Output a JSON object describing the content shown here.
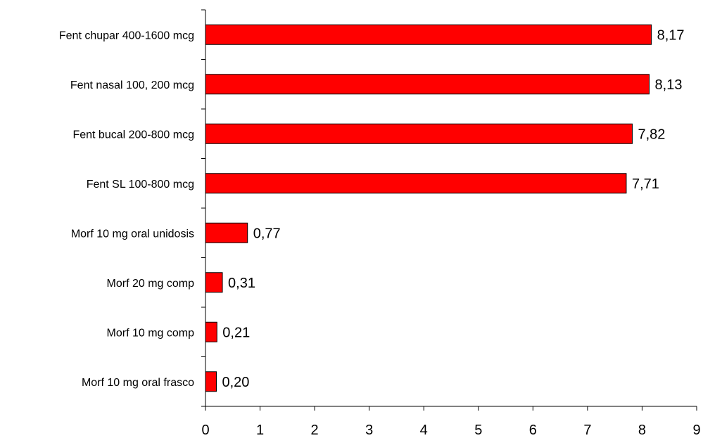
{
  "chart_data": {
    "type": "bar",
    "orientation": "horizontal",
    "categories": [
      "Fent chupar 400-1600 mcg",
      "Fent nasal 100, 200 mcg",
      "Fent bucal 200-800 mcg",
      "Fent SL 100-800 mcg",
      "Morf 10 mg oral unidosis",
      "Morf 20 mg comp",
      "Morf 10 mg comp",
      "Morf 10 mg oral frasco"
    ],
    "values": [
      8.17,
      8.13,
      7.82,
      7.71,
      0.77,
      0.31,
      0.21,
      0.2
    ],
    "value_labels": [
      "8,17",
      "8,13",
      "7,82",
      "7,71",
      "0,77",
      "0,31",
      "0,21",
      "0,20"
    ],
    "xlim": [
      0,
      9
    ],
    "x_ticks": [
      "0",
      "1",
      "2",
      "3",
      "4",
      "5",
      "6",
      "7",
      "8",
      "9"
    ],
    "bar_color": "#ff0000",
    "grid": false,
    "legend": "none"
  }
}
